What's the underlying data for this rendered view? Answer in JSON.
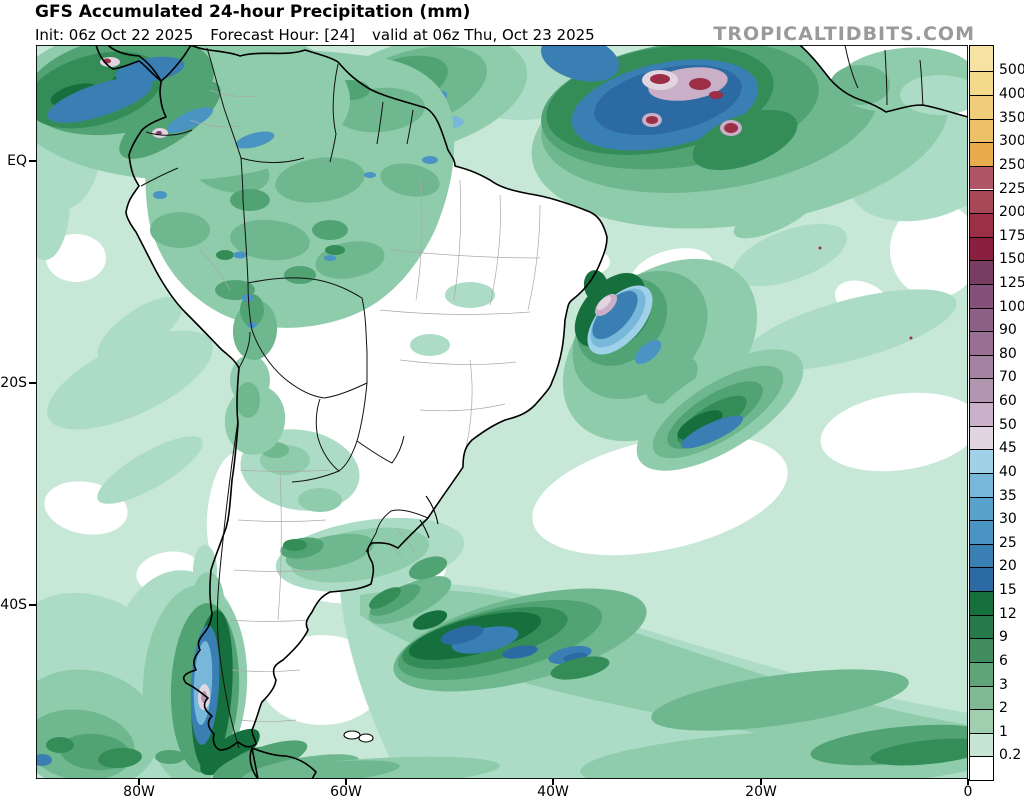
{
  "header": {
    "title": "GFS Accumulated 24-hour Precipitation (mm)",
    "init": "Init: 06z Oct 22 2025",
    "forecast_hour": "Forecast Hour: [24]",
    "valid": "valid at 06z Thu, Oct 23 2025",
    "watermark": "TROPICALTIDBITS.COM"
  },
  "map": {
    "lat_labels": [
      "EQ",
      "20S",
      "40S"
    ],
    "lon_labels": [
      "80W",
      "60W",
      "40W",
      "20W",
      "0"
    ]
  },
  "colorbar": {
    "unit": "mm",
    "tick_labels": [
      "500",
      "400",
      "350",
      "300",
      "250",
      "225",
      "200",
      "175",
      "150",
      "125",
      "100",
      "90",
      "80",
      "70",
      "60",
      "50",
      "45",
      "40",
      "35",
      "30",
      "25",
      "20",
      "15",
      "12",
      "9",
      "6",
      "3",
      "2",
      "1",
      "0.2"
    ],
    "cell_colors_top_to_bottom": [
      "#F6E3A3",
      "#F3D98B",
      "#F0CE79",
      "#EDC167",
      "#E8AC4F",
      "#B05565",
      "#A84757",
      "#9C2F46",
      "#8A1F3F",
      "#7A3D62",
      "#84517B",
      "#8F6085",
      "#997093",
      "#A482A1",
      "#B295AF",
      "#C9AFC7",
      "#E3D4E1",
      "#9FD1E8",
      "#77B7DA",
      "#58A2CD",
      "#4A94C4",
      "#3A7FB3",
      "#2B6AA2",
      "#15703D",
      "#26794A",
      "#408C5E",
      "#5FA478",
      "#80BA94",
      "#A0CFAF",
      "#C6E6D3",
      "#FFFFFF"
    ]
  }
}
